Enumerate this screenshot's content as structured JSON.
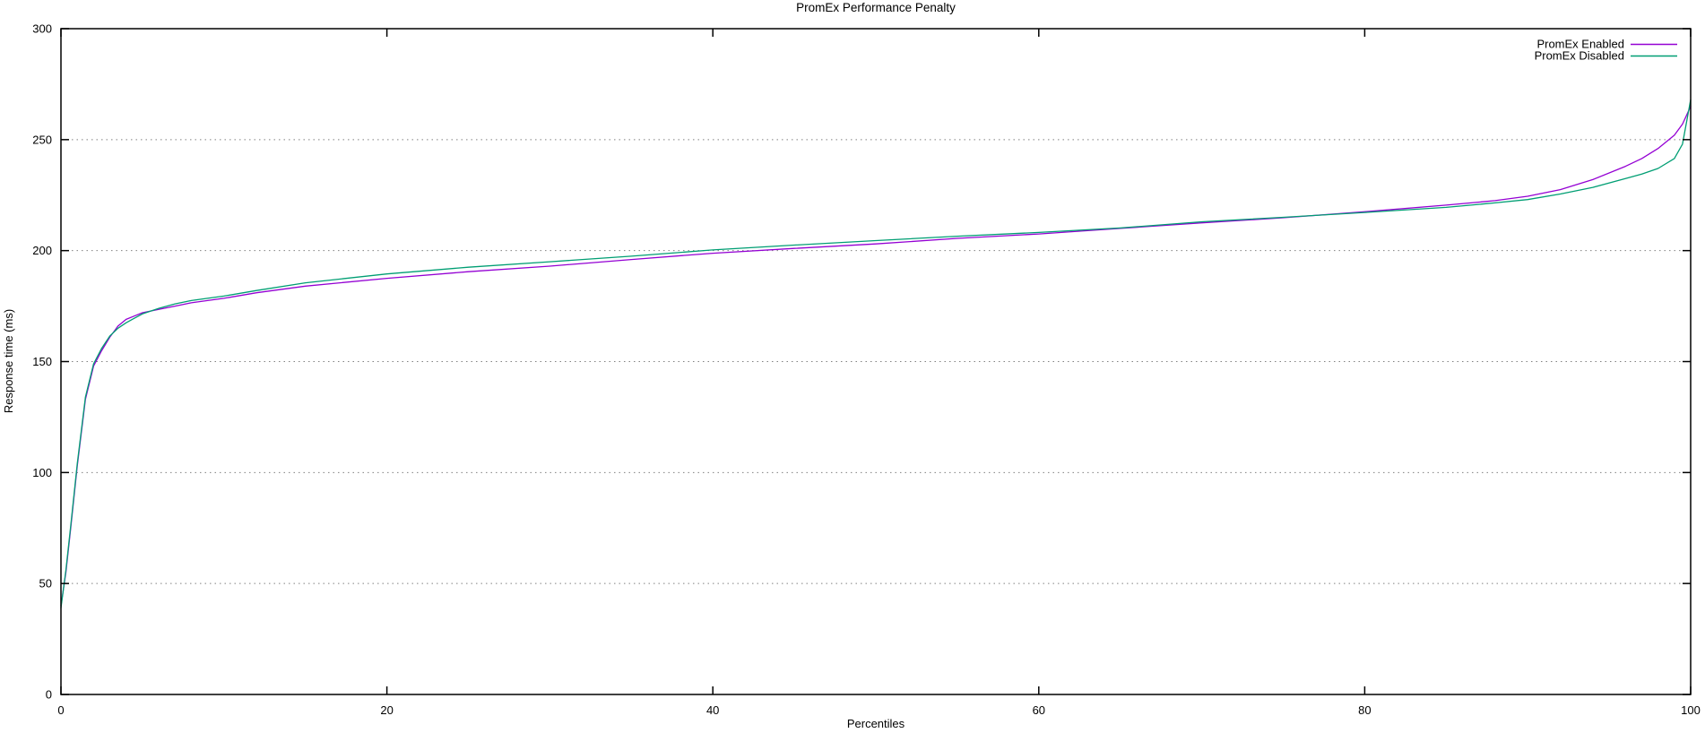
{
  "page": {
    "background": "#ffffff"
  },
  "chart_data": {
    "type": "line",
    "title": "PromEx Performance Penalty",
    "xlabel": "Percentiles",
    "ylabel": "Response time (ms)",
    "xlim": [
      0,
      100
    ],
    "ylim": [
      0,
      300
    ],
    "xticks": [
      0,
      20,
      40,
      60,
      80,
      100
    ],
    "yticks": [
      0,
      50,
      100,
      150,
      200,
      250,
      300
    ],
    "grid": "horizontal dotted lines at y ticks",
    "legend_position": "top-right inside plot",
    "colors": {
      "axis": "#000000",
      "grid": "#808080",
      "background": "#ffffff"
    },
    "series": [
      {
        "name": "PromEx Enabled",
        "color": "#9400d3",
        "x": [
          0,
          0.3,
          0.6,
          1,
          1.5,
          2,
          2.5,
          3,
          3.5,
          4,
          4.5,
          5,
          6,
          7,
          8,
          10,
          12,
          15,
          20,
          25,
          30,
          35,
          40,
          45,
          50,
          55,
          60,
          65,
          70,
          75,
          80,
          85,
          88,
          90,
          92,
          94,
          96,
          97,
          98,
          99,
          99.5,
          100
        ],
        "y": [
          40,
          55,
          75,
          103,
          133,
          148,
          155,
          161,
          166,
          169,
          170.5,
          172,
          173.5,
          175,
          176.5,
          178.5,
          181,
          184,
          187.5,
          190.5,
          193,
          196,
          198.8,
          201,
          203,
          205.5,
          207.5,
          210,
          212.5,
          214.8,
          217.5,
          220.5,
          222.5,
          224.5,
          227.5,
          232,
          238,
          241.5,
          246,
          252,
          257,
          265
        ]
      },
      {
        "name": "PromEx Disabled",
        "color": "#009e73",
        "x": [
          0,
          0.3,
          0.6,
          1,
          1.5,
          2,
          2.5,
          3,
          3.5,
          4,
          4.5,
          5,
          6,
          7,
          8,
          10,
          12,
          15,
          20,
          25,
          30,
          35,
          40,
          45,
          50,
          55,
          60,
          65,
          70,
          75,
          80,
          85,
          88,
          90,
          92,
          94,
          96,
          97,
          98,
          99,
          99.5,
          100
        ],
        "y": [
          39,
          56,
          76,
          104,
          134,
          149,
          156,
          161.5,
          165,
          167.5,
          169.5,
          171.5,
          174,
          176,
          177.5,
          179.5,
          182,
          185.5,
          189.5,
          192.5,
          195,
          197.5,
          200.3,
          202.5,
          204.5,
          206.5,
          208.2,
          210.2,
          213,
          215,
          217.2,
          219.5,
          221.5,
          223,
          225.5,
          228.5,
          232.5,
          234.5,
          237,
          241.5,
          248,
          268
        ]
      }
    ]
  }
}
